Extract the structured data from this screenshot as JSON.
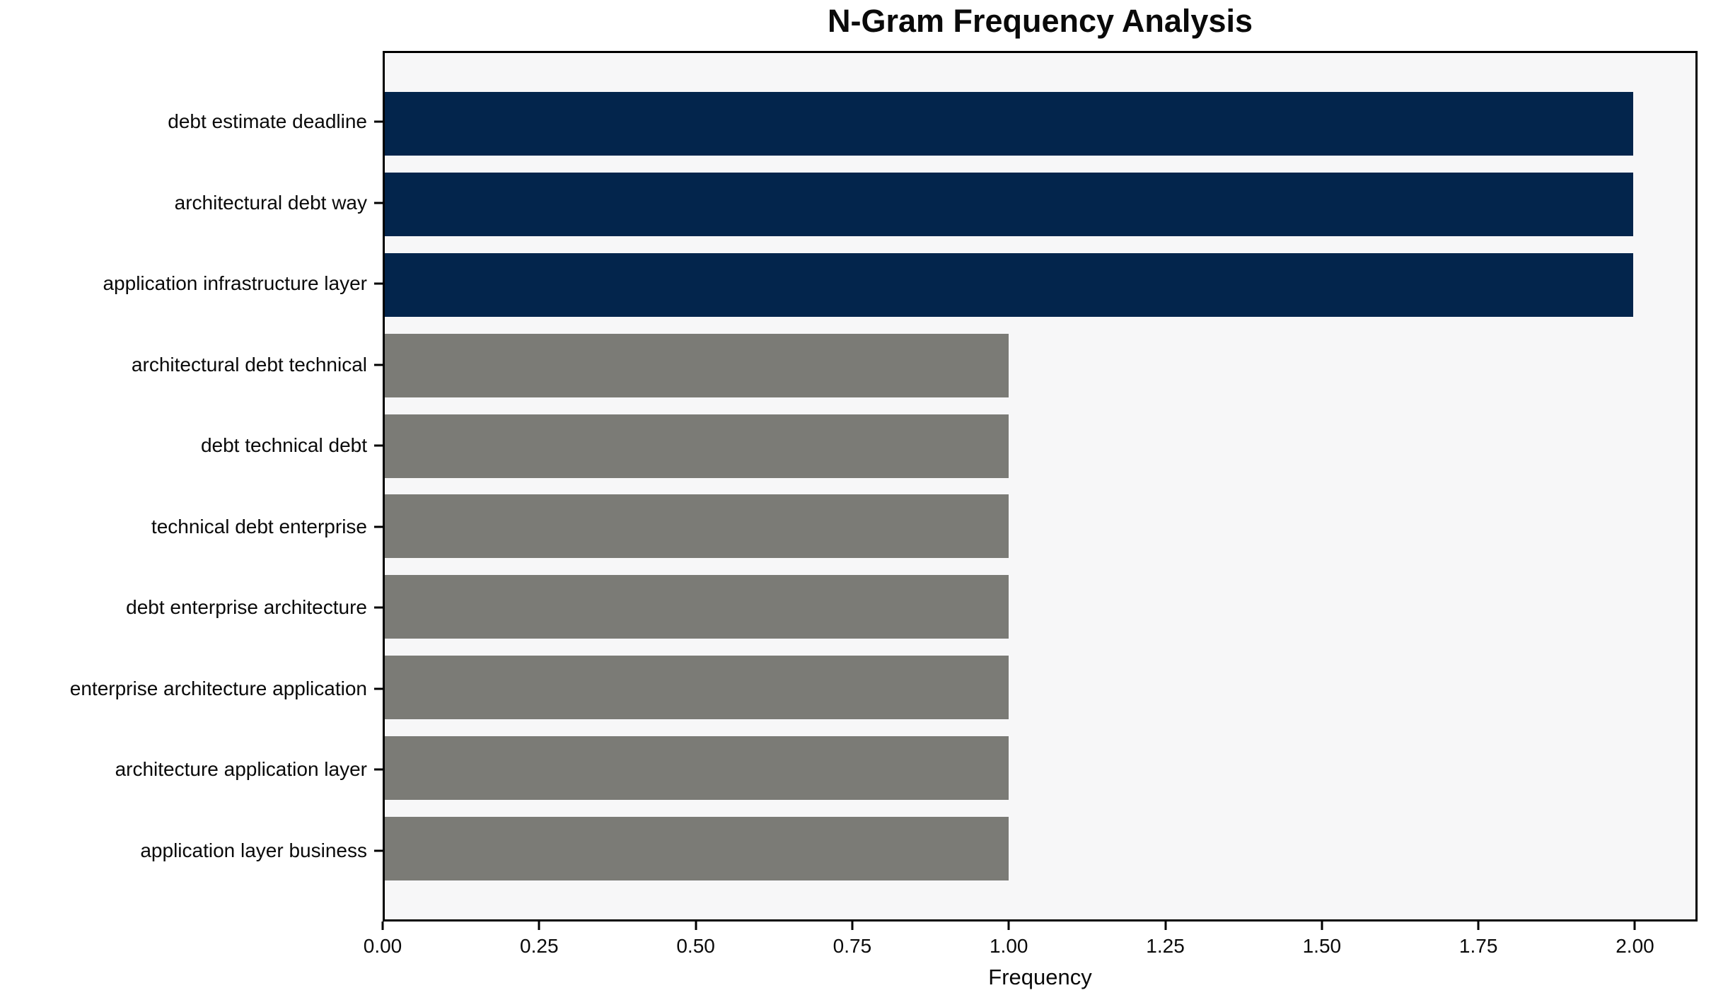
{
  "chart_data": {
    "type": "bar",
    "orientation": "horizontal",
    "title": "N-Gram Frequency Analysis",
    "xlabel": "Frequency",
    "ylabel": "",
    "categories": [
      "debt estimate deadline",
      "architectural debt way",
      "application infrastructure layer",
      "architectural debt technical",
      "debt technical debt",
      "technical debt enterprise",
      "debt enterprise architecture",
      "enterprise architecture application",
      "architecture application layer",
      "application layer business"
    ],
    "values": [
      2,
      2,
      2,
      1,
      1,
      1,
      1,
      1,
      1,
      1
    ],
    "bar_colors": [
      "#03254c",
      "#03254c",
      "#03254c",
      "#7b7b76",
      "#7b7b76",
      "#7b7b76",
      "#7b7b76",
      "#7b7b76",
      "#7b7b76",
      "#7b7b76"
    ],
    "highlight_color": "#03254c",
    "default_color": "#7b7b76",
    "xlim": [
      0,
      2.1
    ],
    "x_ticks": [
      0,
      0.25,
      0.5,
      0.75,
      1.0,
      1.25,
      1.5,
      1.75,
      2.0
    ],
    "x_tick_labels": [
      "0.00",
      "0.25",
      "0.50",
      "0.75",
      "1.00",
      "1.25",
      "1.50",
      "1.75",
      "2.00"
    ],
    "grid": false,
    "legend": false,
    "plot_background": "#f7f7f8",
    "figure_background": "#ffffff"
  }
}
